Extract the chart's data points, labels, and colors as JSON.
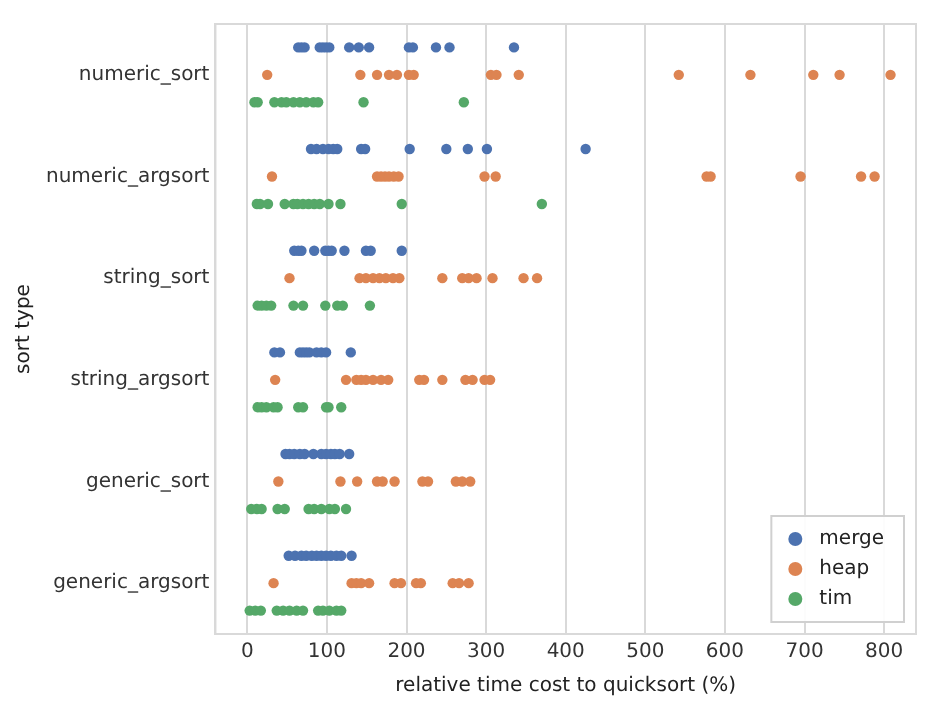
{
  "chart_data": {
    "type": "scatter",
    "orientation": "horizontal",
    "xlabel": "relative time cost to quicksort (%)",
    "ylabel": "sort type",
    "categories": [
      "numeric_sort",
      "numeric_argsort",
      "string_sort",
      "string_argsort",
      "generic_sort",
      "generic_argsort"
    ],
    "xlim": [
      -40,
      840
    ],
    "xticks": [
      0,
      100,
      200,
      300,
      400,
      500,
      600,
      700,
      800
    ],
    "grid": "x",
    "legend": "bottom right",
    "marker": "circle",
    "series": [
      {
        "name": "merge",
        "color": "#4c72b0",
        "x": [
          "numeric_sort",
          "numeric_sort",
          "numeric_sort",
          "numeric_sort",
          "numeric_sort",
          "numeric_sort",
          "numeric_sort",
          "numeric_sort",
          "numeric_sort",
          "numeric_sort",
          "numeric_sort",
          "numeric_sort",
          "numeric_sort",
          "numeric_sort",
          "numeric_sort",
          "numeric_argsort",
          "numeric_argsort",
          "numeric_argsort",
          "numeric_argsort",
          "numeric_argsort",
          "numeric_argsort",
          "numeric_argsort",
          "numeric_argsort",
          "numeric_argsort",
          "numeric_argsort",
          "numeric_argsort",
          "numeric_argsort",
          "numeric_argsort",
          "string_sort",
          "string_sort",
          "string_sort",
          "string_sort",
          "string_sort",
          "string_sort",
          "string_sort",
          "string_sort",
          "string_sort",
          "string_sort",
          "string_sort",
          "string_argsort",
          "string_argsort",
          "string_argsort",
          "string_argsort",
          "string_argsort",
          "string_argsort",
          "string_argsort",
          "string_argsort",
          "string_argsort",
          "string_argsort",
          "generic_sort",
          "generic_sort",
          "generic_sort",
          "generic_sort",
          "generic_sort",
          "generic_sort",
          "generic_sort",
          "generic_sort",
          "generic_sort",
          "generic_sort",
          "generic_sort",
          "generic_sort",
          "generic_argsort",
          "generic_argsort",
          "generic_argsort",
          "generic_argsort",
          "generic_argsort",
          "generic_argsort",
          "generic_argsort",
          "generic_argsort",
          "generic_argsort",
          "generic_argsort",
          "generic_argsort",
          "generic_argsort"
        ],
        "values": [
          64,
          68,
          72,
          91,
          95,
          99,
          103,
          128,
          140,
          153,
          203,
          208,
          237,
          254,
          335,
          80,
          87,
          95,
          102,
          108,
          113,
          143,
          148,
          204,
          250,
          277,
          301,
          425,
          59,
          64,
          68,
          84,
          98,
          102,
          106,
          122,
          149,
          155,
          194,
          34,
          41,
          66,
          70,
          74,
          78,
          87,
          93,
          99,
          130,
          48,
          53,
          59,
          66,
          72,
          83,
          93,
          99,
          105,
          110,
          116,
          128,
          52,
          60,
          68,
          74,
          81,
          87,
          93,
          99,
          105,
          112,
          118,
          131
        ]
      },
      {
        "name": "heap",
        "color": "#dd8452",
        "x": [
          "numeric_sort",
          "numeric_sort",
          "numeric_sort",
          "numeric_sort",
          "numeric_sort",
          "numeric_sort",
          "numeric_sort",
          "numeric_sort",
          "numeric_sort",
          "numeric_sort",
          "numeric_sort",
          "numeric_sort",
          "numeric_sort",
          "numeric_sort",
          "numeric_sort",
          "numeric_argsort",
          "numeric_argsort",
          "numeric_argsort",
          "numeric_argsort",
          "numeric_argsort",
          "numeric_argsort",
          "numeric_argsort",
          "numeric_argsort",
          "numeric_argsort",
          "numeric_argsort",
          "numeric_argsort",
          "numeric_argsort",
          "numeric_argsort",
          "numeric_argsort",
          "string_sort",
          "string_sort",
          "string_sort",
          "string_sort",
          "string_sort",
          "string_sort",
          "string_sort",
          "string_sort",
          "string_sort",
          "string_sort",
          "string_sort",
          "string_sort",
          "string_sort",
          "string_sort",
          "string_sort",
          "string_argsort",
          "string_argsort",
          "string_argsort",
          "string_argsort",
          "string_argsort",
          "string_argsort",
          "string_argsort",
          "string_argsort",
          "string_argsort",
          "string_argsort",
          "string_argsort",
          "string_argsort",
          "string_argsort",
          "string_argsort",
          "string_argsort",
          "generic_sort",
          "generic_sort",
          "generic_sort",
          "generic_sort",
          "generic_sort",
          "generic_sort",
          "generic_sort",
          "generic_sort",
          "generic_sort",
          "generic_sort",
          "generic_sort",
          "generic_argsort",
          "generic_argsort",
          "generic_argsort",
          "generic_argsort",
          "generic_argsort",
          "generic_argsort",
          "generic_argsort",
          "generic_argsort",
          "generic_argsort",
          "generic_argsort",
          "generic_argsort",
          "generic_argsort"
        ],
        "values": [
          25,
          142,
          163,
          178,
          188,
          203,
          209,
          306,
          313,
          341,
          542,
          632,
          711,
          744,
          808,
          31,
          163,
          168,
          173,
          178,
          184,
          190,
          298,
          312,
          577,
          582,
          695,
          771,
          788,
          53,
          141,
          149,
          158,
          166,
          174,
          183,
          191,
          245,
          270,
          278,
          288,
          308,
          347,
          364,
          35,
          124,
          137,
          143,
          149,
          158,
          168,
          177,
          216,
          222,
          245,
          274,
          283,
          298,
          305,
          39,
          117,
          138,
          163,
          170,
          185,
          220,
          227,
          262,
          270,
          280,
          33,
          131,
          137,
          143,
          153,
          185,
          193,
          212,
          218,
          258,
          266,
          278
        ]
      },
      {
        "name": "tim",
        "color": "#55a868",
        "x": [
          "numeric_sort",
          "numeric_sort",
          "numeric_sort",
          "numeric_sort",
          "numeric_sort",
          "numeric_sort",
          "numeric_sort",
          "numeric_sort",
          "numeric_sort",
          "numeric_sort",
          "numeric_sort",
          "numeric_sort",
          "numeric_argsort",
          "numeric_argsort",
          "numeric_argsort",
          "numeric_argsort",
          "numeric_argsort",
          "numeric_argsort",
          "numeric_argsort",
          "numeric_argsort",
          "numeric_argsort",
          "numeric_argsort",
          "numeric_argsort",
          "numeric_argsort",
          "numeric_argsort",
          "numeric_argsort",
          "string_sort",
          "string_sort",
          "string_sort",
          "string_sort",
          "string_sort",
          "string_sort",
          "string_sort",
          "string_sort",
          "string_sort",
          "string_sort",
          "string_argsort",
          "string_argsort",
          "string_argsort",
          "string_argsort",
          "string_argsort",
          "string_argsort",
          "string_argsort",
          "string_argsort",
          "string_argsort",
          "string_argsort",
          "generic_sort",
          "generic_sort",
          "generic_sort",
          "generic_sort",
          "generic_sort",
          "generic_sort",
          "generic_sort",
          "generic_sort",
          "generic_sort",
          "generic_sort",
          "generic_sort",
          "generic_argsort",
          "generic_argsort",
          "generic_argsort",
          "generic_argsort",
          "generic_argsort",
          "generic_argsort",
          "generic_argsort",
          "generic_argsort",
          "generic_argsort",
          "generic_argsort",
          "generic_argsort",
          "generic_argsort",
          "generic_argsort"
        ],
        "values": [
          9,
          13,
          34,
          43,
          49,
          58,
          66,
          74,
          83,
          89,
          146,
          272,
          12,
          16,
          26,
          47,
          58,
          63,
          70,
          77,
          84,
          91,
          102,
          117,
          194,
          370,
          13,
          18,
          24,
          30,
          58,
          70,
          98,
          113,
          120,
          154,
          13,
          18,
          24,
          33,
          38,
          64,
          70,
          99,
          102,
          118,
          5,
          12,
          18,
          38,
          47,
          77,
          84,
          93,
          103,
          110,
          124,
          3,
          10,
          17,
          37,
          45,
          53,
          62,
          70,
          89,
          95,
          103,
          112,
          118
        ]
      }
    ]
  }
}
